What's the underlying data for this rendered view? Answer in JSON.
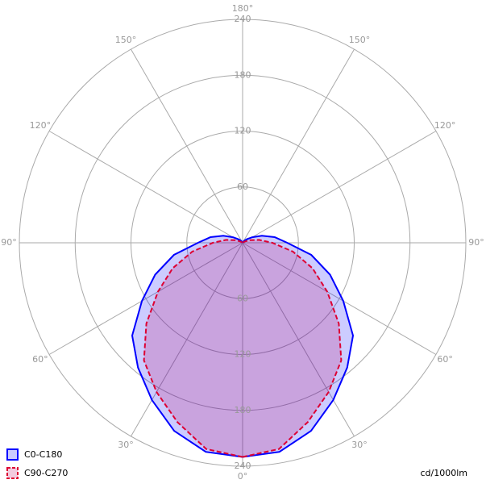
{
  "chart_data": {
    "type": "polar",
    "rlim": [
      0,
      240
    ],
    "rticks": [
      60,
      120,
      180,
      240
    ],
    "angle_ticks": [
      {
        "value": 0,
        "label": "0°"
      },
      {
        "value": 30,
        "label": "30°"
      },
      {
        "value": 60,
        "label": "60°"
      },
      {
        "value": 90,
        "label": "90°"
      },
      {
        "value": 120,
        "label": "120°"
      },
      {
        "value": 150,
        "label": "150°"
      },
      {
        "value": 180,
        "label": "180°"
      }
    ],
    "x": [
      0,
      10,
      20,
      30,
      40,
      50,
      60,
      70,
      80,
      90,
      100,
      110,
      120,
      130,
      140,
      150,
      160,
      170,
      180
    ],
    "series": [
      {
        "name": "C0-C180",
        "color": "#0000ff",
        "dashed": false,
        "values": [
          230,
          228,
          215,
          195,
          175,
          155,
          125,
          100,
          75,
          48,
          35,
          22,
          12,
          6,
          3,
          1,
          0,
          0,
          0
        ]
      },
      {
        "name": "C90-C270",
        "color": "#dd0033",
        "dashed": true,
        "values": [
          230,
          225,
          205,
          185,
          165,
          135,
          105,
          80,
          55,
          32,
          18,
          8,
          3,
          1,
          0,
          0,
          0,
          0,
          0
        ]
      }
    ],
    "unit_label": "cd/1000lm"
  }
}
